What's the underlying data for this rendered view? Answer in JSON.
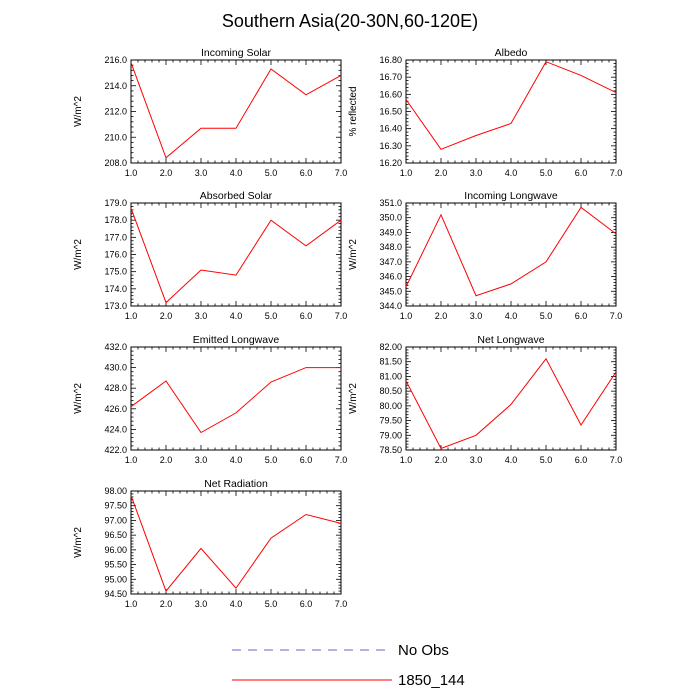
{
  "figure": {
    "title": "Southern Asia(20-30N,60-120E)",
    "legend": [
      {
        "label": "No Obs",
        "color": "#6666cc",
        "dashed": true
      },
      {
        "label": "1850_144",
        "color": "#ff0000",
        "dashed": false
      }
    ]
  },
  "chart_data": [
    {
      "type": "line",
      "title": "Incoming Solar",
      "ylabel": "W/m^2",
      "x": [
        1,
        2,
        3,
        4,
        5,
        6,
        7
      ],
      "xlim": [
        1,
        7
      ],
      "xticks": [
        "1.0",
        "2.0",
        "3.0",
        "4.0",
        "5.0",
        "6.0",
        "7.0"
      ],
      "ylim": [
        208,
        216
      ],
      "yticks": [
        "208.0",
        "210.0",
        "212.0",
        "214.0",
        "216.0"
      ],
      "ytick_values": [
        208,
        210,
        212,
        214,
        216
      ],
      "series": [
        {
          "name": "1850_144",
          "color": "#ff0000",
          "values": [
            215.8,
            208.4,
            210.7,
            210.7,
            215.3,
            213.3,
            214.8
          ]
        }
      ]
    },
    {
      "type": "line",
      "title": "Albedo",
      "ylabel": "% reflected",
      "x": [
        1,
        2,
        3,
        4,
        5,
        6,
        7
      ],
      "xlim": [
        1,
        7
      ],
      "xticks": [
        "1.0",
        "2.0",
        "3.0",
        "4.0",
        "5.0",
        "6.0",
        "7.0"
      ],
      "ylim": [
        16.2,
        16.8
      ],
      "yticks": [
        "16.20",
        "16.30",
        "16.40",
        "16.50",
        "16.60",
        "16.70",
        "16.80"
      ],
      "ytick_values": [
        16.2,
        16.3,
        16.4,
        16.5,
        16.6,
        16.7,
        16.8
      ],
      "series": [
        {
          "name": "1850_144",
          "color": "#ff0000",
          "values": [
            16.57,
            16.28,
            16.36,
            16.43,
            16.79,
            16.71,
            16.61
          ]
        }
      ]
    },
    {
      "type": "line",
      "title": "Absorbed Solar",
      "ylabel": "W/m^2",
      "x": [
        1,
        2,
        3,
        4,
        5,
        6,
        7
      ],
      "xlim": [
        1,
        7
      ],
      "xticks": [
        "1.0",
        "2.0",
        "3.0",
        "4.0",
        "5.0",
        "6.0",
        "7.0"
      ],
      "ylim": [
        173,
        179
      ],
      "yticks": [
        "173.0",
        "174.0",
        "175.0",
        "176.0",
        "177.0",
        "178.0",
        "179.0"
      ],
      "ytick_values": [
        173,
        174,
        175,
        176,
        177,
        178,
        179
      ],
      "series": [
        {
          "name": "1850_144",
          "color": "#ff0000",
          "values": [
            178.7,
            173.2,
            175.1,
            174.8,
            178.0,
            176.5,
            178.0
          ]
        }
      ]
    },
    {
      "type": "line",
      "title": "Incoming Longwave",
      "ylabel": "W/m^2",
      "x": [
        1,
        2,
        3,
        4,
        5,
        6,
        7
      ],
      "xlim": [
        1,
        7
      ],
      "xticks": [
        "1.0",
        "2.0",
        "3.0",
        "4.0",
        "5.0",
        "6.0",
        "7.0"
      ],
      "ylim": [
        344,
        351
      ],
      "yticks": [
        "344.0",
        "345.0",
        "346.0",
        "347.0",
        "348.0",
        "349.0",
        "350.0",
        "351.0"
      ],
      "ytick_values": [
        344,
        345,
        346,
        347,
        348,
        349,
        350,
        351
      ],
      "series": [
        {
          "name": "1850_144",
          "color": "#ff0000",
          "values": [
            345.3,
            350.2,
            344.7,
            345.5,
            347.0,
            350.7,
            348.9
          ]
        }
      ]
    },
    {
      "type": "line",
      "title": "Emitted Longwave",
      "ylabel": "W/m^2",
      "x": [
        1,
        2,
        3,
        4,
        5,
        6,
        7
      ],
      "xlim": [
        1,
        7
      ],
      "xticks": [
        "1.0",
        "2.0",
        "3.0",
        "4.0",
        "5.0",
        "6.0",
        "7.0"
      ],
      "ylim": [
        422,
        432
      ],
      "yticks": [
        "422.0",
        "424.0",
        "426.0",
        "428.0",
        "430.0",
        "432.0"
      ],
      "ytick_values": [
        422,
        424,
        426,
        428,
        430,
        432
      ],
      "series": [
        {
          "name": "1850_144",
          "color": "#ff0000",
          "values": [
            426.2,
            428.7,
            423.7,
            425.6,
            428.6,
            430.0,
            430.0
          ]
        }
      ]
    },
    {
      "type": "line",
      "title": "Net Longwave",
      "ylabel": "W/m^2",
      "x": [
        1,
        2,
        3,
        4,
        5,
        6,
        7
      ],
      "xlim": [
        1,
        7
      ],
      "xticks": [
        "1.0",
        "2.0",
        "3.0",
        "4.0",
        "5.0",
        "6.0",
        "7.0"
      ],
      "ylim": [
        78.5,
        82.0
      ],
      "yticks": [
        "78.50",
        "79.00",
        "79.50",
        "80.00",
        "80.50",
        "81.00",
        "81.50",
        "82.00"
      ],
      "ytick_values": [
        78.5,
        79,
        79.5,
        80,
        80.5,
        81,
        81.5,
        82
      ],
      "series": [
        {
          "name": "1850_144",
          "color": "#ff0000",
          "values": [
            80.85,
            78.55,
            79.0,
            80.05,
            81.6,
            79.35,
            81.15
          ]
        }
      ]
    },
    {
      "type": "line",
      "title": "Net Radiation",
      "ylabel": "W/m^2",
      "x": [
        1,
        2,
        3,
        4,
        5,
        6,
        7
      ],
      "xlim": [
        1,
        7
      ],
      "xticks": [
        "1.0",
        "2.0",
        "3.0",
        "4.0",
        "5.0",
        "6.0",
        "7.0"
      ],
      "ylim": [
        94.5,
        98.0
      ],
      "yticks": [
        "94.50",
        "95.00",
        "95.50",
        "96.00",
        "96.50",
        "97.00",
        "97.50",
        "98.00"
      ],
      "ytick_values": [
        94.5,
        95,
        95.5,
        96,
        96.5,
        97,
        97.5,
        98
      ],
      "series": [
        {
          "name": "1850_144",
          "color": "#ff0000",
          "values": [
            97.85,
            94.6,
            96.05,
            94.7,
            96.4,
            97.2,
            96.9
          ]
        }
      ]
    }
  ]
}
